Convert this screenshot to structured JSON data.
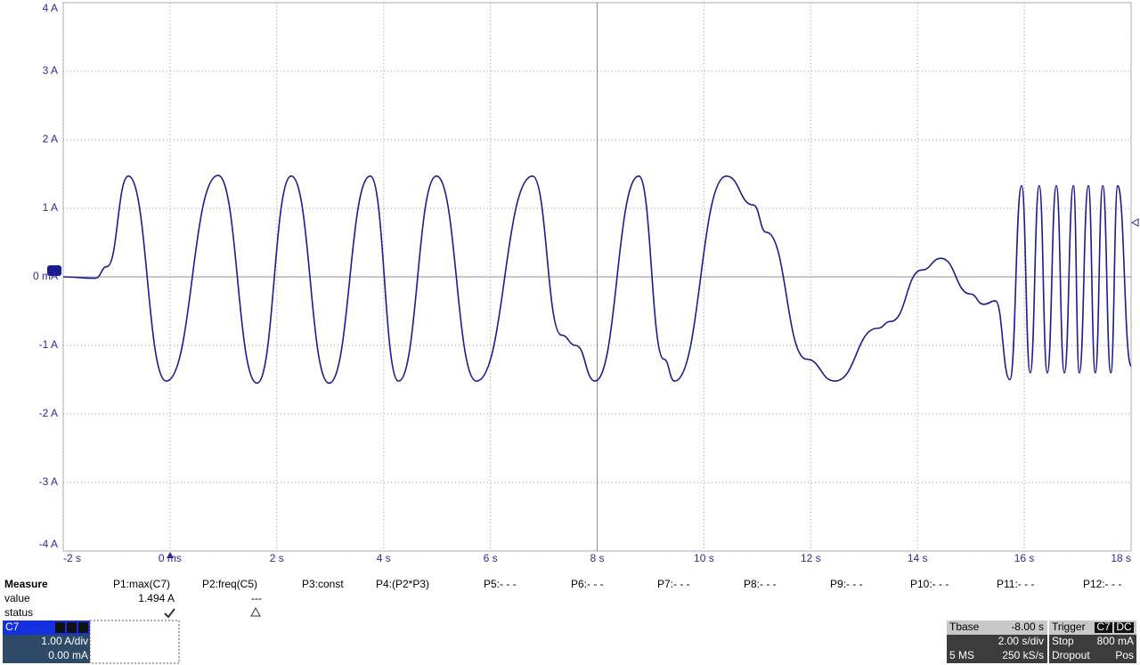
{
  "chart_data": {
    "type": "line",
    "color": "#1c1c8e",
    "x": [
      -2.0,
      -1.4,
      -1.18,
      -0.78,
      -0.07,
      0.9,
      1.63,
      2.27,
      2.98,
      3.75,
      4.28,
      4.99,
      5.74,
      6.79,
      7.33,
      7.6,
      7.96,
      8.78,
      9.25,
      9.45,
      10.42,
      10.92,
      11.17,
      11.92,
      12.45,
      13.25,
      13.5,
      14.08,
      14.44,
      14.99,
      15.24,
      15.46,
      15.73,
      15.95,
      16.11,
      16.28,
      16.43,
      16.6,
      16.75,
      16.92,
      17.03,
      17.2,
      17.33,
      17.47,
      17.62,
      17.75,
      18.0
    ],
    "values": [
      0.0,
      -0.02,
      0.15,
      1.47,
      -1.52,
      1.48,
      -1.55,
      1.47,
      -1.55,
      1.47,
      -1.52,
      1.47,
      -1.52,
      1.47,
      -0.85,
      -1.0,
      -1.52,
      1.47,
      -1.2,
      -1.52,
      1.47,
      1.05,
      0.65,
      -1.2,
      -1.52,
      -0.75,
      -0.65,
      0.1,
      0.27,
      -0.25,
      -0.4,
      -0.35,
      -1.5,
      1.33,
      -1.4,
      1.33,
      -1.4,
      1.33,
      -1.4,
      1.33,
      -1.4,
      1.33,
      -1.4,
      1.33,
      -1.4,
      1.33,
      -1.3
    ],
    "xlim": [
      -2,
      18
    ],
    "xticks": [
      {
        "value": -2,
        "label": "-2 s"
      },
      {
        "value": 0,
        "label": "0 ms"
      },
      {
        "value": 2,
        "label": "2 s"
      },
      {
        "value": 4,
        "label": "4 s"
      },
      {
        "value": 6,
        "label": "6 s"
      },
      {
        "value": 8,
        "label": "8 s"
      },
      {
        "value": 10,
        "label": "10 s"
      },
      {
        "value": 12,
        "label": "12 s"
      },
      {
        "value": 14,
        "label": "14 s"
      },
      {
        "value": 16,
        "label": "16 s"
      },
      {
        "value": 18,
        "label": "18 s"
      }
    ],
    "ylim": [
      -4,
      4
    ],
    "yticks": [
      {
        "value": -4,
        "label": "-4 A"
      },
      {
        "value": -3,
        "label": "-3 A"
      },
      {
        "value": -2,
        "label": "-2 A"
      },
      {
        "value": -1,
        "label": "-1 A"
      },
      {
        "value": 0,
        "label": "0 mA"
      },
      {
        "value": 1,
        "label": "1 A"
      },
      {
        "value": 2,
        "label": "2 A"
      },
      {
        "value": 3,
        "label": "3 A"
      },
      {
        "value": 4,
        "label": "4 A"
      }
    ],
    "grid": true
  },
  "measure": {
    "title": "Measure",
    "columns": [
      "P1:max(C7)",
      "P2:freq(C5)",
      "P3:const",
      "P4:(P2*P3)",
      "P5:- - -",
      "P6:- - -",
      "P7:- - -",
      "P8:- - -",
      "P9:- - -",
      "P10:- - -",
      "P11:- - -",
      "P12:- - -"
    ],
    "rows": [
      {
        "label": "value",
        "cells": [
          "1.494 A",
          "---"
        ]
      },
      {
        "label": "status"
      }
    ]
  },
  "channel": {
    "name": "C7",
    "scale": "1.00 A/div",
    "offset": "0.00 mA"
  },
  "timebase": {
    "title": "Tbase",
    "delay": "-8.00 s",
    "scale": "2.00 s/div",
    "memory": "5 MS",
    "rate": "250 kS/s"
  },
  "trigger": {
    "title": "Trigger",
    "source": "C7",
    "coupling": "DC",
    "mode": "Stop",
    "level": "800 mA",
    "type": "Dropout",
    "slope": "Pos"
  }
}
